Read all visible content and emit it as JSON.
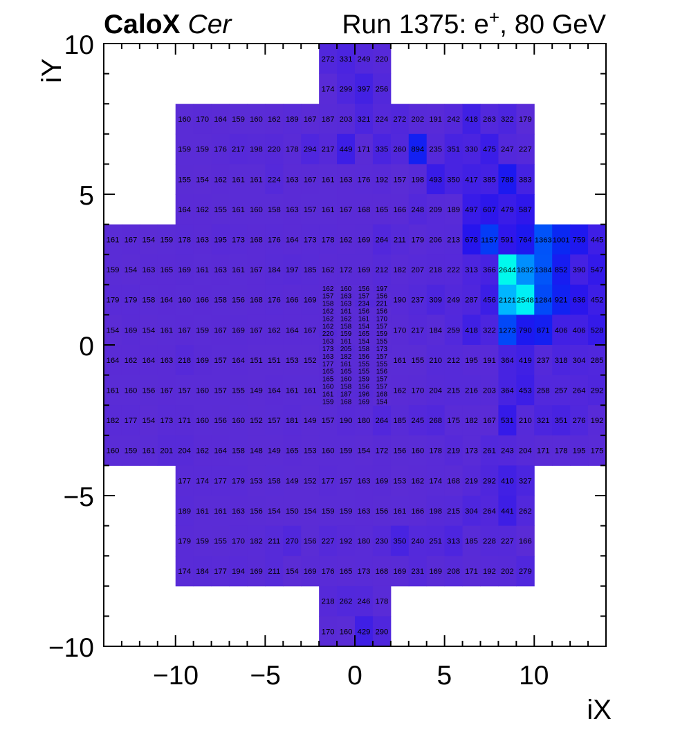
{
  "header": {
    "title_bold": "CaloX",
    "title_italic": "Cer",
    "run_pre": "Run 1375: e",
    "run_sup": "+",
    "run_post": ", 80 GeV"
  },
  "axes": {
    "x_title": "iX",
    "y_title": "iY",
    "x_tick_labels": [
      "−10",
      "−5",
      "0",
      "5",
      "10"
    ],
    "y_tick_labels": [
      "10",
      "5",
      "0",
      "−5",
      "−10"
    ]
  },
  "chart_data": {
    "type": "heatmap",
    "title": "CaloX Cer",
    "subtitle_right": "Run 1375: e+, 80 GeV",
    "xlabel": "iX",
    "ylabel": "iY",
    "x_range": [
      -14,
      14
    ],
    "y_range": [
      -10,
      10
    ],
    "x_major_ticks": [
      -10,
      -5,
      0,
      5,
      10
    ],
    "y_major_ticks": [
      -10,
      -5,
      0,
      5,
      10
    ],
    "z_min": 148,
    "z_max": 2644,
    "rows": [
      {
        "iy": 9,
        "start": -2,
        "values": [
          272,
          331,
          249,
          220
        ]
      },
      {
        "iy": 8,
        "start": -2,
        "values": [
          174,
          299,
          397,
          256
        ]
      },
      {
        "iy": 7,
        "start": -10,
        "values": [
          160,
          170,
          164,
          159,
          160,
          162,
          189,
          167,
          187,
          203,
          321,
          224,
          272,
          202,
          191,
          242,
          418,
          263,
          322,
          179
        ]
      },
      {
        "iy": 6,
        "start": -10,
        "values": [
          159,
          159,
          176,
          217,
          198,
          220,
          178,
          294,
          217,
          449,
          171,
          335,
          260,
          894,
          235,
          351,
          330,
          475,
          247,
          227
        ]
      },
      {
        "iy": 5,
        "start": -10,
        "values": [
          155,
          154,
          162,
          161,
          161,
          224,
          163,
          167,
          161,
          163,
          176,
          192,
          157,
          198,
          493,
          350,
          417,
          385,
          788,
          383
        ]
      },
      {
        "iy": 4,
        "start": -10,
        "values": [
          164,
          162,
          155,
          161,
          160,
          158,
          163,
          157,
          161,
          167,
          168,
          165,
          166,
          248,
          209,
          189,
          497,
          607,
          479,
          587
        ]
      },
      {
        "iy": 3,
        "start": -14,
        "values": [
          161,
          167,
          154,
          159,
          178,
          163,
          195,
          173,
          168,
          176,
          164,
          173,
          178,
          162,
          169,
          264,
          211,
          179,
          206,
          213,
          678,
          1157,
          591,
          764,
          1363,
          1001,
          759,
          445
        ]
      },
      {
        "iy": 2,
        "start": -14,
        "values": [
          159,
          154,
          163,
          165,
          169,
          161,
          163,
          161,
          167,
          184,
          197,
          185,
          162,
          172,
          169,
          212,
          182,
          207,
          218,
          222,
          313,
          366,
          2644,
          1832,
          1384,
          852,
          390,
          547
        ]
      },
      {
        "iy": 1,
        "start": -14,
        "values": [
          179,
          179,
          158,
          164,
          160,
          166,
          158,
          156,
          168,
          176,
          166,
          169
        ]
      },
      {
        "iy": 1,
        "start": 2,
        "values": [
          190,
          237,
          309,
          249,
          287,
          456,
          2121,
          2548,
          1284,
          921,
          636,
          452
        ]
      },
      {
        "iy": 0,
        "start": -14,
        "values": [
          154,
          169,
          154,
          161,
          167,
          159,
          167,
          169,
          167,
          162,
          164,
          167
        ]
      },
      {
        "iy": 0,
        "start": 2,
        "values": [
          170,
          217,
          184,
          259,
          418,
          322,
          1273,
          790,
          871,
          406,
          406,
          528
        ]
      },
      {
        "iy": -1,
        "start": -14,
        "values": [
          164,
          162,
          164,
          163,
          218,
          169,
          157,
          164,
          151,
          151,
          153,
          152
        ]
      },
      {
        "iy": -1,
        "start": 2,
        "values": [
          161,
          155,
          210,
          212,
          195,
          191,
          364,
          419,
          237,
          318,
          304,
          285
        ]
      },
      {
        "iy": -2,
        "start": -14,
        "values": [
          161,
          160,
          156,
          167,
          157,
          160,
          157,
          155,
          149,
          164,
          161,
          161
        ]
      },
      {
        "iy": -2,
        "start": 2,
        "values": [
          162,
          170,
          204,
          215,
          216,
          203,
          364,
          453,
          258,
          257,
          264,
          292
        ]
      },
      {
        "iy": -3,
        "start": -14,
        "values": [
          182,
          177,
          154,
          173,
          171,
          160,
          156,
          160,
          152,
          157,
          181,
          149,
          157,
          190,
          180,
          264,
          185,
          245,
          268,
          175,
          182,
          167,
          531,
          210,
          321,
          351,
          276,
          192
        ]
      },
      {
        "iy": -4,
        "start": -14,
        "values": [
          160,
          159,
          161,
          201,
          204,
          162,
          164,
          158,
          148,
          149,
          165,
          153,
          160,
          159,
          154,
          172,
          156,
          160,
          178,
          219,
          173,
          261,
          243,
          204,
          171,
          178,
          195,
          175
        ]
      },
      {
        "iy": -5,
        "start": -10,
        "values": [
          177,
          174,
          177,
          179,
          153,
          158,
          149,
          152,
          177,
          157,
          163,
          169,
          153,
          162,
          174,
          168,
          219,
          292,
          410,
          327
        ]
      },
      {
        "iy": -6,
        "start": -10,
        "values": [
          189,
          161,
          161,
          163,
          156,
          154,
          150,
          154,
          159,
          159,
          163,
          156,
          161,
          166,
          198,
          215,
          304,
          264,
          441,
          262
        ]
      },
      {
        "iy": -7,
        "start": -10,
        "values": [
          179,
          159,
          155,
          170,
          182,
          211,
          270,
          156,
          227,
          192,
          180,
          230,
          350,
          240,
          251,
          313,
          185,
          228,
          227,
          166
        ]
      },
      {
        "iy": -8,
        "start": -10,
        "values": [
          174,
          184,
          177,
          194,
          169,
          211,
          154,
          169,
          176,
          165,
          173,
          168,
          169,
          231,
          169,
          208,
          171,
          192,
          202,
          279
        ]
      },
      {
        "iy": -9,
        "start": -2,
        "values": [
          218,
          262,
          246,
          178
        ]
      },
      {
        "iy": -10,
        "start": -2,
        "values": [
          170,
          160,
          429,
          290
        ]
      }
    ],
    "fine_region": {
      "x_start": -2,
      "y_top": 2,
      "cols": 4,
      "cell_w": 1,
      "cell_h": 0.25,
      "values": [
        [
          162,
          160,
          156,
          197
        ],
        [
          157,
          163,
          157,
          156
        ],
        [
          158,
          163,
          234,
          221
        ],
        [
          162,
          161,
          156,
          156
        ],
        [
          162,
          162,
          161,
          170
        ],
        [
          162,
          158,
          154,
          157
        ],
        [
          220,
          159,
          165,
          159
        ],
        [
          163,
          161,
          154,
          155
        ],
        [
          173,
          205,
          158,
          173
        ],
        [
          163,
          182,
          156,
          157
        ],
        [
          177,
          161,
          155,
          155
        ],
        [
          165,
          165,
          155,
          156
        ],
        [
          165,
          160,
          159,
          157
        ],
        [
          160,
          158,
          156,
          157
        ],
        [
          161,
          187,
          196,
          168
        ],
        [
          159,
          168,
          169,
          154
        ]
      ]
    },
    "palette_stops": [
      [
        148,
        "#5b2cd5"
      ],
      [
        230,
        "#5529da"
      ],
      [
        320,
        "#4c25df"
      ],
      [
        430,
        "#3f1fe5"
      ],
      [
        560,
        "#3218ea"
      ],
      [
        700,
        "#2414ee"
      ],
      [
        850,
        "#171df1"
      ],
      [
        1000,
        "#0a28f3"
      ],
      [
        1200,
        "#0340f7"
      ],
      [
        1450,
        "#005dfa"
      ],
      [
        1750,
        "#0084fd"
      ],
      [
        2000,
        "#00a5ff"
      ],
      [
        2250,
        "#00c9ff"
      ],
      [
        2480,
        "#00e9fb"
      ],
      [
        2700,
        "#00ffe8"
      ]
    ],
    "text_color": "#000000",
    "frame_color": "#000000"
  }
}
